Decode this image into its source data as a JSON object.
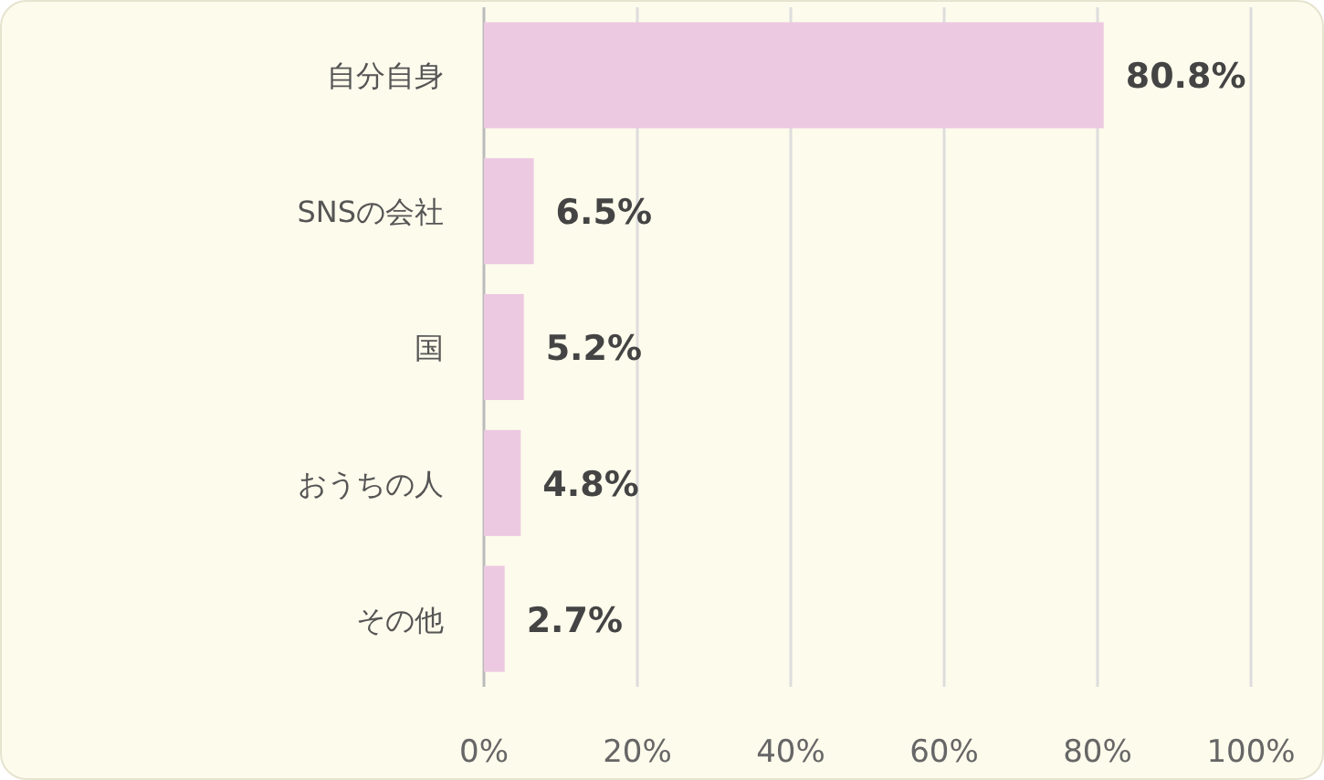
{
  "chart_data": {
    "type": "bar",
    "orientation": "horizontal",
    "categories": [
      "自分自身",
      "SNSの会社",
      "国",
      "おうちの人",
      "その他"
    ],
    "values": [
      80.8,
      6.5,
      5.2,
      4.8,
      2.7
    ],
    "value_labels": [
      "80.8%",
      "6.5%",
      "5.2%",
      "4.8%",
      "2.7%"
    ],
    "color": "#ecc9e1",
    "xlim": [
      0,
      100
    ],
    "xticks": [
      {
        "value": 0,
        "label": "0%"
      },
      {
        "value": 20,
        "label": "20%"
      },
      {
        "value": 40,
        "label": "40%"
      },
      {
        "value": 60,
        "label": "60%"
      },
      {
        "value": 80,
        "label": "80%"
      },
      {
        "value": 100,
        "label": "100%"
      }
    ],
    "grid": "x"
  }
}
